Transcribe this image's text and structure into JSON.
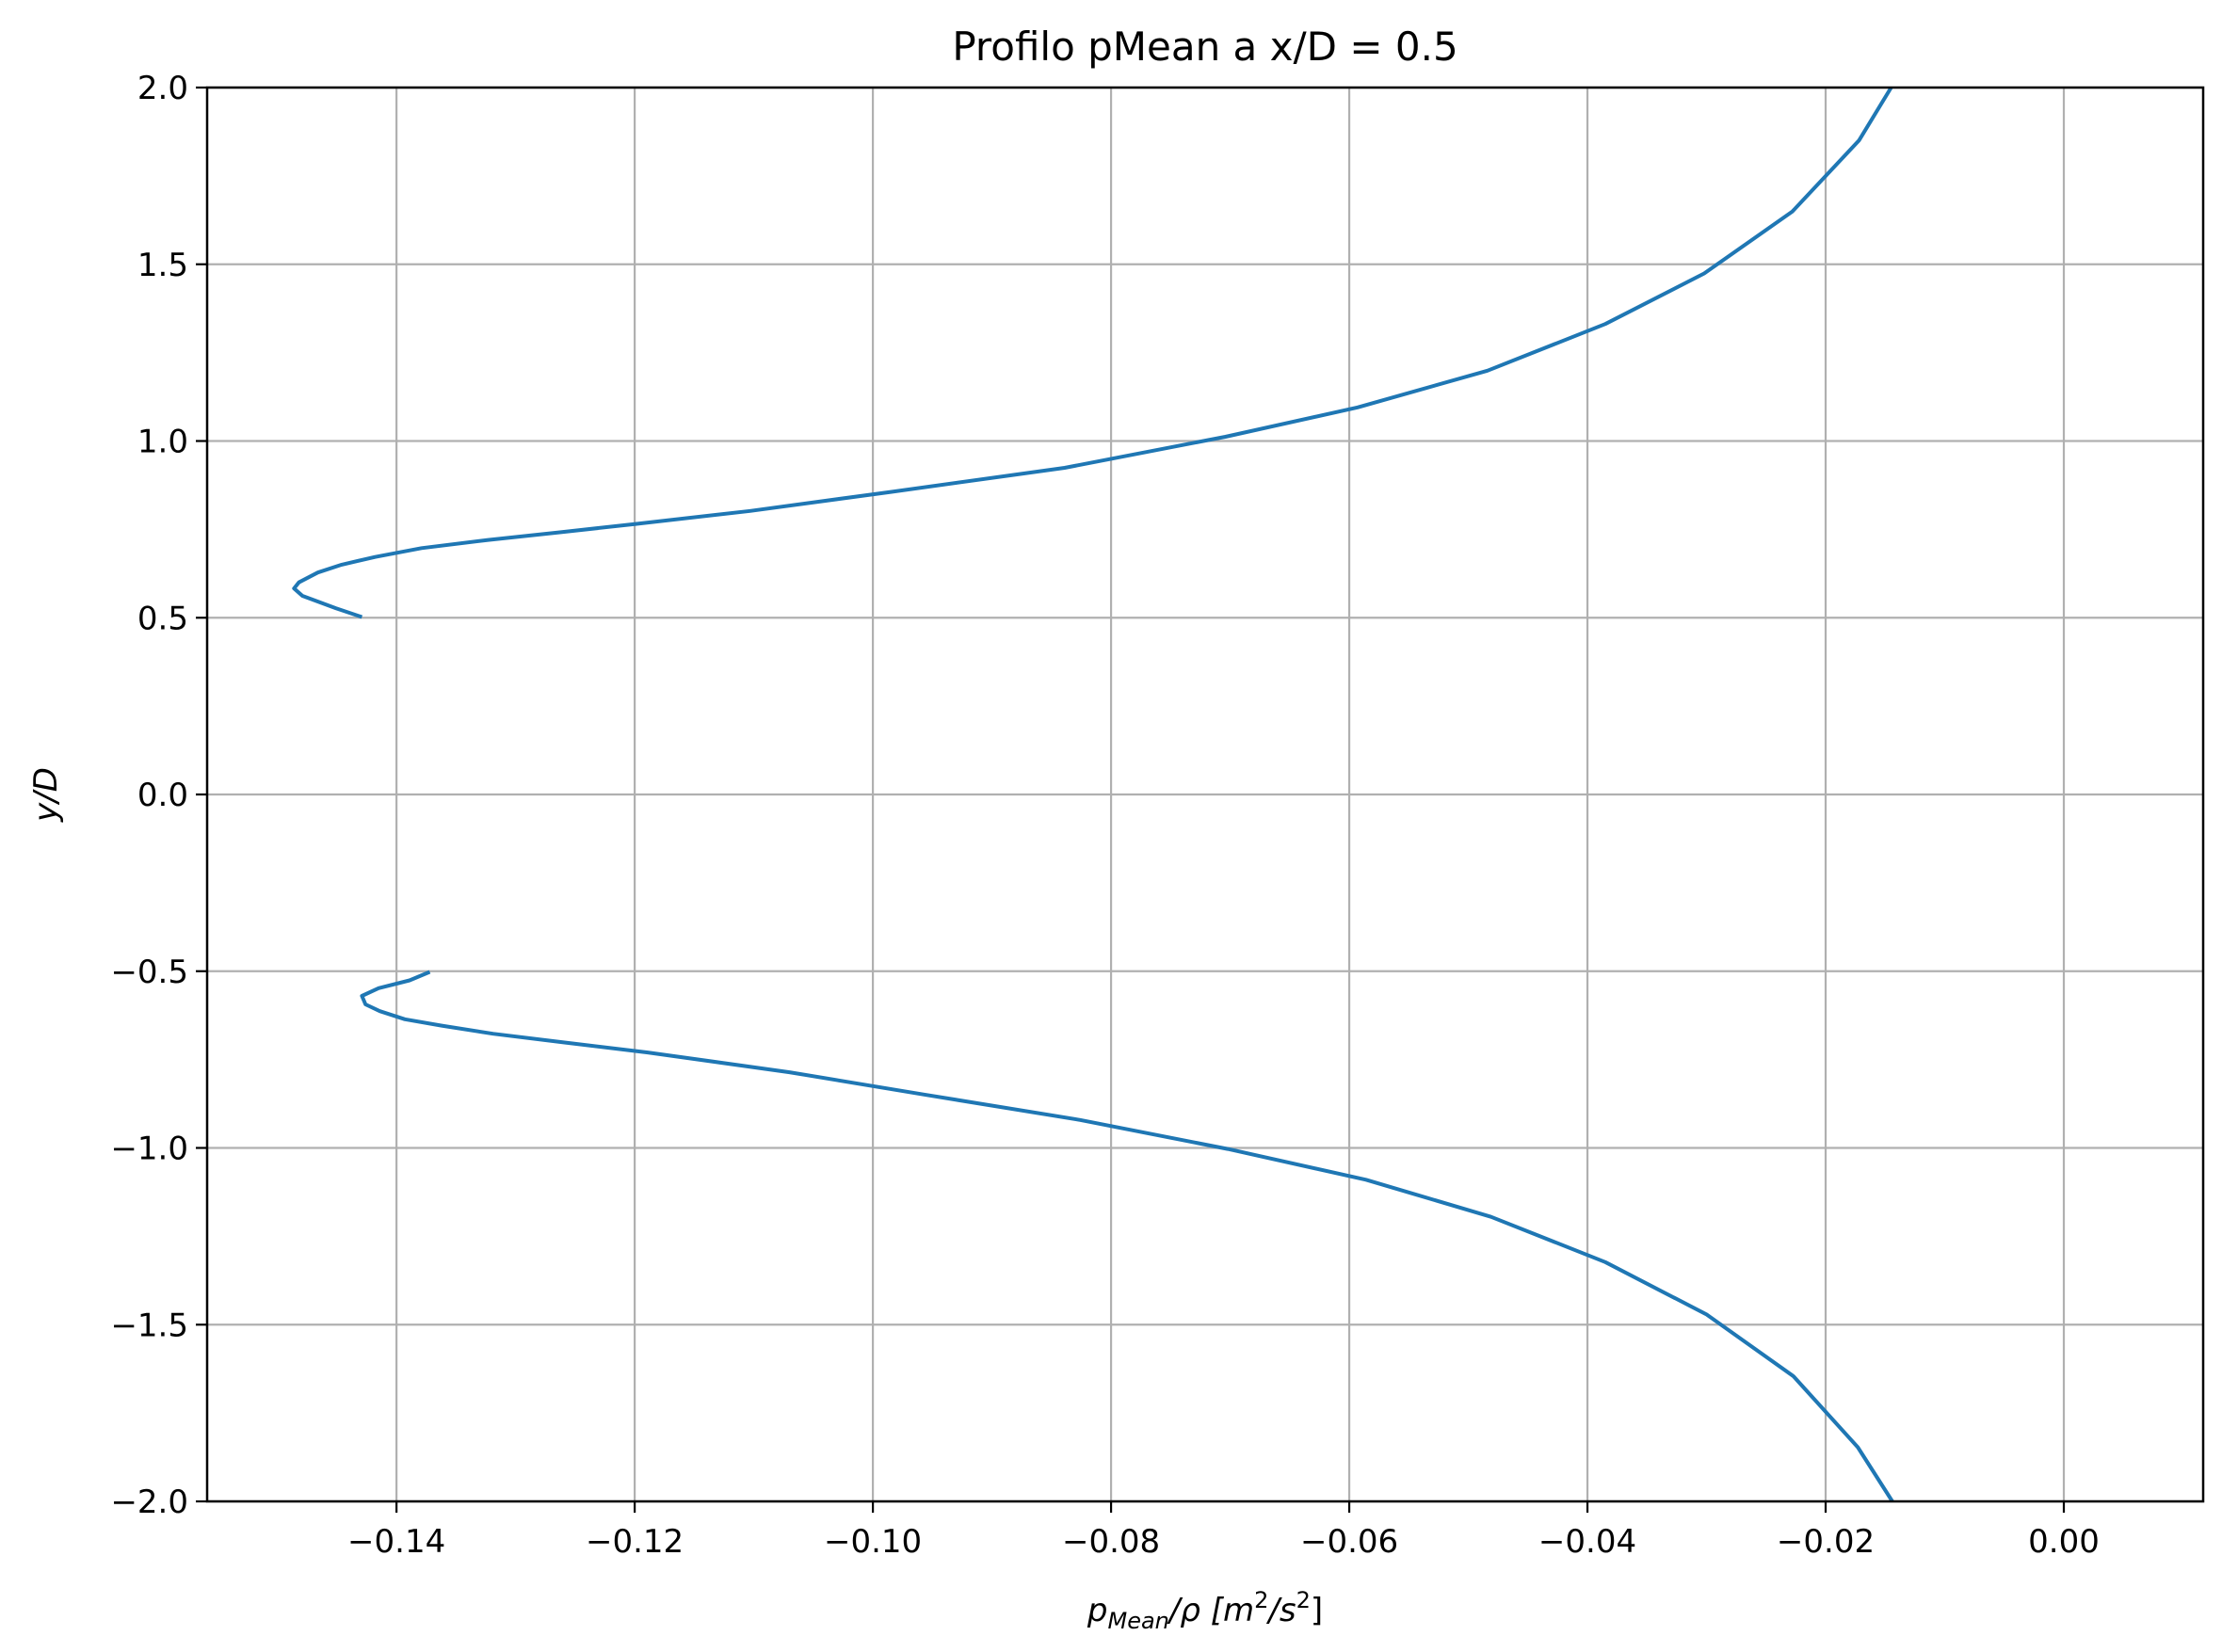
{
  "chart_data": {
    "type": "line",
    "title": "Profilo pMean a x/D = 0.5",
    "xlabel": {
      "main": "p",
      "sub": "Mean",
      "after": "/ρ  [m",
      "sup1": "2",
      "mid": "/s",
      "sup2": "2",
      "end": "]"
    },
    "ylabel": "y/D",
    "xlim": [
      -0.1559,
      0.0117
    ],
    "ylim": [
      -2.0,
      2.0
    ],
    "xticks": [
      {
        "value": -0.14,
        "label": "−0.14"
      },
      {
        "value": -0.12,
        "label": "−0.12"
      },
      {
        "value": -0.1,
        "label": "−0.10"
      },
      {
        "value": -0.08,
        "label": "−0.08"
      },
      {
        "value": -0.06,
        "label": "−0.06"
      },
      {
        "value": -0.04,
        "label": "−0.04"
      },
      {
        "value": -0.02,
        "label": "−0.02"
      },
      {
        "value": 0.0,
        "label": "0.00"
      }
    ],
    "yticks": [
      {
        "value": 2.0,
        "label": "2.0"
      },
      {
        "value": 1.5,
        "label": "1.5"
      },
      {
        "value": 1.0,
        "label": "1.0"
      },
      {
        "value": 0.5,
        "label": "0.5"
      },
      {
        "value": 0.0,
        "label": "0.0"
      },
      {
        "value": -0.5,
        "label": "−0.5"
      },
      {
        "value": -1.0,
        "label": "−1.0"
      },
      {
        "value": -1.5,
        "label": "−1.5"
      },
      {
        "value": -2.0,
        "label": "−2.0"
      }
    ],
    "grid": true,
    "color": "#1f77b4",
    "series": [
      {
        "x": [
          -0.1429,
          -0.1451,
          -0.1479,
          -0.1486,
          -0.1482,
          -0.1466,
          -0.1446,
          -0.1418,
          -0.1379,
          -0.1323,
          -0.1262,
          -0.12,
          -0.1103,
          -0.0985,
          -0.0839,
          -0.0704,
          -0.0593,
          -0.0484,
          -0.0385,
          -0.0302,
          -0.0228,
          -0.0172,
          -0.0145
        ],
        "y": [
          0.502,
          0.527,
          0.562,
          0.583,
          0.6,
          0.628,
          0.65,
          0.672,
          0.697,
          0.72,
          0.742,
          0.765,
          0.802,
          0.856,
          0.924,
          1.012,
          1.095,
          1.199,
          1.331,
          1.474,
          1.649,
          1.85,
          2.0
        ]
      },
      {
        "x": [
          -0.1372,
          -0.1389,
          -0.1415,
          -0.1429,
          -0.1426,
          -0.1414,
          -0.1393,
          -0.1362,
          -0.1319,
          -0.1258,
          -0.1189,
          -0.107,
          -0.0957,
          -0.0826,
          -0.0702,
          -0.0586,
          -0.0481,
          -0.0385,
          -0.03,
          -0.0227,
          -0.0173,
          -0.0144
        ],
        "y": [
          -0.502,
          -0.526,
          -0.548,
          -0.57,
          -0.594,
          -0.613,
          -0.636,
          -0.654,
          -0.677,
          -0.702,
          -0.73,
          -0.786,
          -0.849,
          -0.921,
          -1.003,
          -1.09,
          -1.195,
          -1.323,
          -1.471,
          -1.646,
          -1.847,
          -2.0
        ]
      }
    ]
  }
}
